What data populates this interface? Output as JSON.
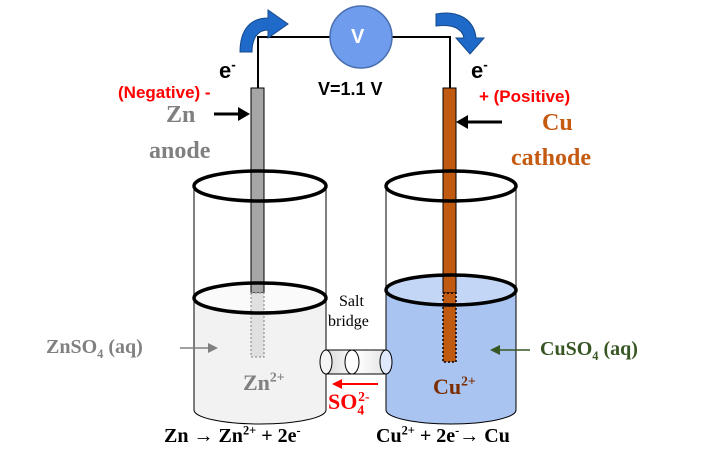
{
  "voltmeter": {
    "symbol": "V",
    "reading": "V=1.1 V"
  },
  "electrons": {
    "left": {
      "base": "e",
      "sup": "-"
    },
    "right": {
      "base": "e",
      "sup": "-"
    }
  },
  "zinc": {
    "polarity": "(Negative) -",
    "name": "Zn",
    "role": "anode",
    "solution": {
      "a": "ZnSO",
      "sub": "4",
      "b": " (aq)"
    },
    "ion": {
      "base": "Zn",
      "sup": "2+"
    },
    "reaction": {
      "a": "Zn",
      "arrow": "→",
      "b": "Zn",
      "sup1": "2+",
      "c": " + 2e",
      "sup2": "-"
    }
  },
  "copper": {
    "polarity": "+ (Positive)",
    "name": "Cu",
    "role": "cathode",
    "solution": {
      "a": "CuSO",
      "sub": "4",
      "b": " (aq)"
    },
    "ion": {
      "base": "Cu",
      "sup": "2+"
    },
    "reaction": {
      "a": "Cu",
      "sup1": "2+",
      "b": " + 2e",
      "sup2": "-",
      "arrow": "→",
      "c": " Cu"
    }
  },
  "salt_bridge": {
    "line1": "Salt",
    "line2": "bridge"
  },
  "sulfate": {
    "base": "SO",
    "sub": "4",
    "sup": "2-"
  },
  "colors": {
    "zinc_label": "#808080",
    "zinc_electrode": "#a6a6a6",
    "copper_label": "#c55a11",
    "copper_electrode": "#c05a10",
    "positive_negative": "#ff0000",
    "cuso4_label": "#375623",
    "copper_solution": "#a9c4f0",
    "zinc_solution": "#f2f2f2",
    "curved_arrow": "#1f6ac8",
    "voltmeter_fill": "#6f9cec"
  }
}
